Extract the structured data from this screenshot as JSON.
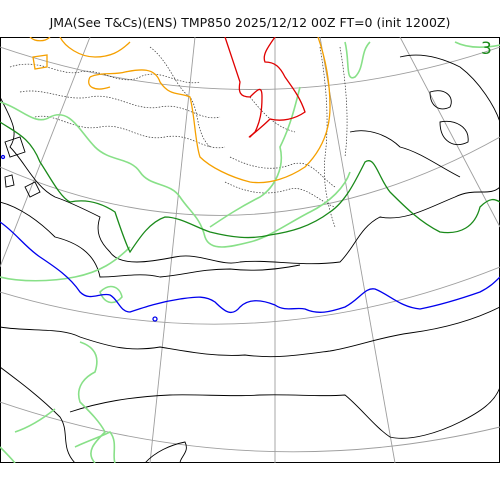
{
  "title": "JMA(See T&Cs)(ENS) TMP850 2025/12/12 00Z FT=0 (init 1200Z)",
  "colors": {
    "coast": "#000000",
    "grid": "#9e9e9e",
    "contour_dotted": "#333333",
    "isotherm_0": "#0000ee",
    "isotherm_minus3": "#1a8a1a",
    "isotherm_light": "#88e088",
    "isotherm_orange": "#f5a000",
    "isotherm_red": "#e00000"
  },
  "labels": {
    "contour_3": "3"
  }
}
